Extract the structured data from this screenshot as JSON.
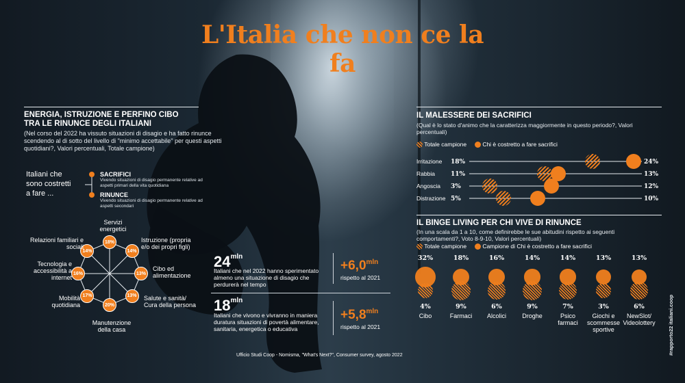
{
  "title": "L'Italia che non ce la fa",
  "left": {
    "heading_line1": "ENERGIA, ISTRUZIONE E PERFINO CIBO",
    "heading_line2": "TRA LE RINUNCE DEGLI ITALIANI",
    "question": "(Nel corso del 2022 ha vissuto situazioni di disagio e ha fatto rinunce scendendo al di sotto del livello di \"minimo accettabile\" per questi aspetti quotidiani?, Valori percentuali, Totale campione)",
    "intro_line1": "Italiani che",
    "intro_line2": "sono costretti",
    "intro_line3": "a fare ...",
    "legend": [
      {
        "label": "SACRIFICI",
        "desc": "Vivendo situazioni di disagio permanente relative ad aspetti primari della vita quotidiana"
      },
      {
        "label": "RINUNCE",
        "desc": "Vivendo situazioni di disagio permanente relative ad aspetti secondari"
      }
    ],
    "wheel": [
      {
        "label": "Servizi energetici",
        "value": "18%",
        "color": "#f07f1e"
      },
      {
        "label": "Istruzione (propria e/o dei propri figli)",
        "value": "14%",
        "color": "#f07f1e"
      },
      {
        "label": "Cibo ed alimentazione",
        "value": "13%",
        "color": "#f07f1e"
      },
      {
        "label": "Salute e sanità/ Cura della persona",
        "value": "13%",
        "color": "#f07f1e"
      },
      {
        "label": "Manutenzione della casa",
        "value": "20%",
        "color": "#f07f1e"
      },
      {
        "label": "Mobilità quotidiana",
        "value": "17%",
        "color": "#f07f1e"
      },
      {
        "label": "Tecnologia e accessibilità a internet",
        "value": "16%",
        "color": "#f07f1e"
      },
      {
        "label": "Relazioni familiari e sociali",
        "value": "14%",
        "color": "#f07f1e"
      }
    ]
  },
  "center": {
    "stat1": {
      "number": "24",
      "unit": "mln",
      "text": "Italiani che nel 2022 hanno sperimentato almeno una situazione di disagio che perdurerà nel tempo",
      "delta": "+6,0",
      "delta_unit": "mln",
      "delta_text": "rispetto al 2021"
    },
    "stat2": {
      "number": "18",
      "unit": "mln",
      "text": "Italiani che vivono e vivranno in maniera duratura situazioni di povertà alimentare, sanitaria, energetica o educativa",
      "delta": "+5,8",
      "delta_unit": "mln",
      "delta_text": "rispetto al 2021"
    },
    "source": "Ufficio Studi Coop - Nomisma, \"What's Next?\", Consumer survey, agosto 2022"
  },
  "right": {
    "malessere": {
      "heading": "IL MALESSERE DEI SACRIFICI",
      "question": "(Qual è lo stato d'animo che la caratterizza maggiormente in questo periodo?, Valori percentuali)",
      "legend_total": "Totale campione",
      "legend_sacrifici": "Chi è costretto a fare sacrifici",
      "rows": [
        {
          "label": "Irritazione",
          "total": 18,
          "total_label": "18%",
          "sacrifici": 24,
          "sacrifici_label": "24%"
        },
        {
          "label": "Rabbia",
          "total": 11,
          "total_label": "11%",
          "sacrifici": 13,
          "sacrifici_label": "13%"
        },
        {
          "label": "Angoscia",
          "total": 3,
          "total_label": "3%",
          "sacrifici": 12,
          "sacrifici_label": "12%"
        },
        {
          "label": "Distrazione",
          "total": 5,
          "total_label": "5%",
          "sacrifici": 10,
          "sacrifici_label": "10%"
        }
      ]
    },
    "binge": {
      "heading": "IL BINGE LIVING PER CHI VIVE DI RINUNCE",
      "question": "(In una scala da 1 a 10, come definirebbe le sue abitudini rispetto ai seguenti comportamenti?, Voto 8-9-10, Valori percentuali)",
      "legend_total": "Totale campione",
      "legend_sacrifici": "Campione di Chi è costretto a fare sacrifici",
      "cols": [
        {
          "label": "Cibo",
          "sacrifici": "32%",
          "total": "4%"
        },
        {
          "label": "Farmaci",
          "sacrifici": "18%",
          "total": "9%"
        },
        {
          "label": "Alcolici",
          "sacrifici": "16%",
          "total": "6%"
        },
        {
          "label": "Droghe",
          "sacrifici": "14%",
          "total": "9%"
        },
        {
          "label": "Psico farmaci",
          "sacrifici": "14%",
          "total": "7%"
        },
        {
          "label": "Giochi e scommesse sportive",
          "sacrifici": "13%",
          "total": "3%"
        },
        {
          "label": "NewSlot/ Videolottery",
          "sacrifici": "13%",
          "total": "6%"
        }
      ]
    }
  },
  "side_tag": "#rapporto22 italiani.coop"
}
